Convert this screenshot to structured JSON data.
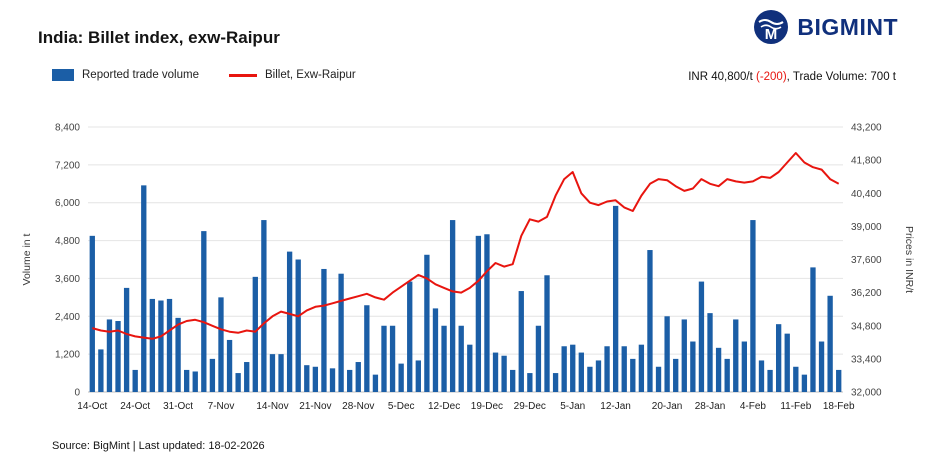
{
  "header": {
    "title": "India: Billet index, exw-Raipur",
    "brand": "BIGMINT"
  },
  "legend_items": [
    {
      "label": "Reported trade volume",
      "type": "bar",
      "color": "#1b5ea6"
    },
    {
      "label": "Billet, Exw-Raipur",
      "type": "line",
      "color": "#e8150f"
    }
  ],
  "summary": {
    "prefix": "INR 40,800/t ",
    "change": "(-200)",
    "suffix": ", Trade Volume: 700 t"
  },
  "footer": "Source: BigMint | Last updated: 18-02-2026",
  "colors": {
    "bar": "#1b5ea6",
    "line": "#e8150f",
    "brand": "#10307c",
    "negative": "#e8150f",
    "gridline": "#e4e4e4",
    "axis_line": "#bfbfbf"
  },
  "chart_data": {
    "type": "bar+line",
    "title": "India: Billet index, exw-Raipur",
    "grid": true,
    "legend_position": "top-left",
    "x_labels": [
      "14-Oct",
      "24-Oct",
      "31-Oct",
      "7-Nov",
      "14-Nov",
      "21-Nov",
      "28-Nov",
      "5-Dec",
      "12-Dec",
      "19-Dec",
      "29-Dec",
      "5-Jan",
      "12-Jan",
      "20-Jan",
      "28-Jan",
      "4-Feb",
      "11-Feb",
      "18-Feb"
    ],
    "x_label_indices": [
      0,
      5,
      10,
      15,
      21,
      26,
      31,
      36,
      41,
      46,
      51,
      56,
      61,
      67,
      72,
      77,
      82,
      87
    ],
    "left_axis": {
      "label": "Volume in t",
      "min": 0,
      "max": 8400,
      "ticks": [
        "0",
        "1,200",
        "2,400",
        "3,600",
        "4,800",
        "6,000",
        "7,200",
        "8,400"
      ]
    },
    "right_axis": {
      "label": "Prices in INR/t",
      "min": 32000,
      "max": 43200,
      "ticks": [
        "32,000",
        "33,400",
        "34,800",
        "36,200",
        "37,600",
        "39,000",
        "40,400",
        "41,800",
        "43,200"
      ]
    },
    "series": [
      {
        "name": "Reported trade volume",
        "type": "bar",
        "axis": "left",
        "color": "#1b5ea6",
        "values": [
          4950,
          1350,
          2300,
          2250,
          3300,
          700,
          6550,
          2950,
          2900,
          2950,
          2350,
          700,
          650,
          5100,
          1050,
          3000,
          1650,
          600,
          950,
          3650,
          5450,
          1200,
          1200,
          4450,
          4200,
          850,
          800,
          3900,
          750,
          3750,
          700,
          950,
          2750,
          550,
          2100,
          2100,
          900,
          3500,
          1000,
          4350,
          2650,
          2100,
          5450,
          2100,
          1500,
          4950,
          5000,
          1250,
          1150,
          700,
          3200,
          600,
          2100,
          3700,
          600,
          1450,
          1500,
          1250,
          800,
          1000,
          1450,
          5900,
          1450,
          1050,
          1500,
          4500,
          800,
          2400,
          1050,
          2300,
          1600,
          3500,
          2500,
          1400,
          1050,
          2300,
          1600,
          5450,
          1000,
          700,
          2150,
          1850,
          800,
          550,
          3950,
          1600,
          3050,
          700
        ]
      },
      {
        "name": "Billet, Exw-Raipur",
        "type": "line",
        "axis": "right",
        "color": "#e8150f",
        "values": [
          34700,
          34600,
          34550,
          34600,
          34450,
          34350,
          34300,
          34250,
          34350,
          34600,
          34850,
          35000,
          35050,
          34950,
          34800,
          34650,
          34550,
          34500,
          34600,
          34550,
          34900,
          35200,
          35400,
          35300,
          35200,
          35450,
          35600,
          35650,
          35750,
          35850,
          35950,
          36050,
          36150,
          36000,
          35900,
          36200,
          36450,
          36700,
          36950,
          36800,
          36550,
          36400,
          36250,
          36200,
          36400,
          36700,
          37100,
          37450,
          37300,
          37400,
          38600,
          39300,
          39200,
          39400,
          40300,
          41000,
          41300,
          40400,
          40000,
          39900,
          40050,
          40100,
          39800,
          39650,
          40300,
          40800,
          41000,
          40950,
          40700,
          40500,
          40600,
          41000,
          40800,
          40700,
          41000,
          40900,
          40850,
          40900,
          41100,
          41050,
          41300,
          41700,
          42100,
          41700,
          41500,
          41400,
          41000,
          40800
        ]
      }
    ]
  }
}
